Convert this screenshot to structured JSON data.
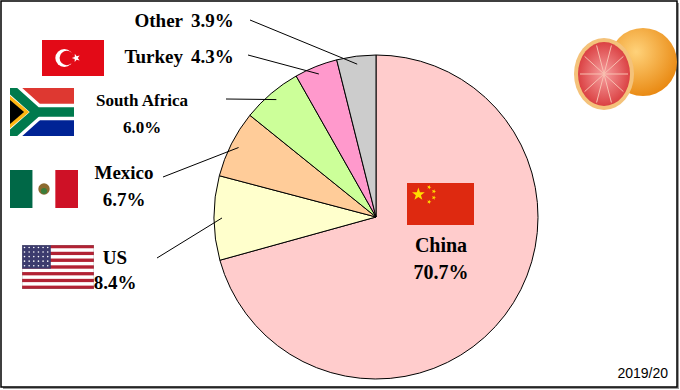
{
  "chart_data": {
    "type": "pie",
    "categories": [
      "China",
      "US",
      "Mexico",
      "South Africa",
      "Turkey",
      "Other"
    ],
    "values": [
      70.7,
      8.4,
      6.7,
      6.0,
      4.3,
      3.9
    ],
    "value_labels": [
      "70.7%",
      "8.4%",
      "6.7%",
      "6.0%",
      "4.3%",
      "3.9%"
    ],
    "colors": [
      "#ffcccc",
      "#ffffcc",
      "#ffcc99",
      "#ccff99",
      "#ff99cc",
      "#cccccc"
    ],
    "data_labels": true,
    "annotations": [
      "2019/20"
    ]
  }
}
